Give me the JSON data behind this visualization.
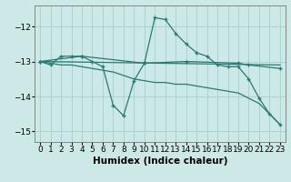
{
  "xlabel": "Humidex (Indice chaleur)",
  "ylabel": "",
  "bg_color": "#cce9e7",
  "line_color": "#2a7a72",
  "grid_color": "#aad4d0",
  "xlim": [
    -0.5,
    23.5
  ],
  "ylim": [
    -15.3,
    -11.4
  ],
  "yticks": [
    -15,
    -14,
    -13,
    -12
  ],
  "xticks": [
    0,
    1,
    2,
    3,
    4,
    5,
    6,
    7,
    8,
    9,
    10,
    11,
    12,
    13,
    14,
    15,
    16,
    17,
    18,
    19,
    20,
    21,
    22,
    23
  ],
  "lines": [
    {
      "x": [
        0,
        1,
        2,
        3,
        4,
        5,
        6,
        7,
        8,
        9,
        10,
        11,
        12,
        13,
        14,
        15,
        16,
        17,
        18,
        19,
        20,
        21,
        22,
        23
      ],
      "y": [
        -13.0,
        -13.1,
        -12.85,
        -12.85,
        -12.85,
        -13.0,
        -13.15,
        -14.25,
        -14.55,
        -13.55,
        -13.05,
        -11.75,
        -11.8,
        -12.2,
        -12.5,
        -12.75,
        -12.85,
        -13.1,
        -13.15,
        -13.15,
        -13.5,
        -14.05,
        -14.5,
        -14.8
      ],
      "marker": "+"
    },
    {
      "x": [
        0,
        23
      ],
      "y": [
        -13.0,
        -13.1
      ],
      "marker": null
    },
    {
      "x": [
        0,
        4,
        10,
        14,
        19,
        20,
        23
      ],
      "y": [
        -13.0,
        -12.85,
        -13.05,
        -13.0,
        -13.05,
        -13.1,
        -13.2
      ],
      "marker": "+"
    },
    {
      "x": [
        0,
        1,
        2,
        3,
        4,
        5,
        6,
        7,
        8,
        9,
        10,
        11,
        12,
        13,
        14,
        15,
        16,
        17,
        18,
        19,
        20,
        21,
        22,
        23
      ],
      "y": [
        -13.0,
        -13.05,
        -13.1,
        -13.1,
        -13.15,
        -13.2,
        -13.25,
        -13.3,
        -13.4,
        -13.5,
        -13.55,
        -13.6,
        -13.6,
        -13.65,
        -13.65,
        -13.7,
        -13.75,
        -13.8,
        -13.85,
        -13.9,
        -14.05,
        -14.2,
        -14.5,
        -14.8
      ],
      "marker": null
    }
  ],
  "tick_fontsize": 6.5,
  "label_fontsize": 7.5
}
